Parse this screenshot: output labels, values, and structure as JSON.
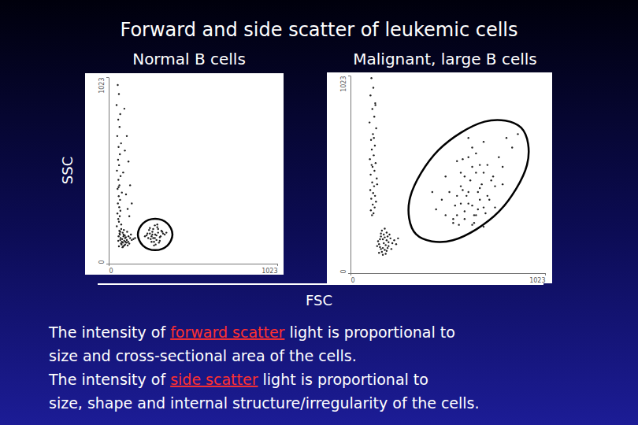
{
  "title": "Forward and side scatter of leukemic cells",
  "x_label": "FSC",
  "caption": [
    [
      {
        "text": "The intensity of "
      },
      {
        "text": "forward scatter",
        "color": "#ff3030"
      },
      {
        "text": " light is proportional to"
      }
    ],
    [
      {
        "text": "size and cross-sectional area of the cells."
      }
    ],
    [
      {
        "text": "The intensity of "
      },
      {
        "text": "side scatter",
        "color": "#ff3030"
      },
      {
        "text": " light is proportional to"
      }
    ],
    [
      {
        "text": "size, shape and internal structure/irregularity of the cells."
      }
    ]
  ],
  "chart_data": [
    {
      "type": "scatter",
      "title": "Normal B cells",
      "y_label": "SSC",
      "xlim": [
        0,
        1023
      ],
      "ylim": [
        0,
        1023
      ],
      "xticks": [
        0,
        1023
      ],
      "yticks": [
        0,
        1023
      ],
      "series": [
        {
          "color": "#222222",
          "x": [
            55,
            62,
            48,
            70,
            58,
            66,
            52,
            75,
            60,
            68,
            57,
            63,
            50,
            72,
            59,
            65,
            54,
            80,
            61,
            69,
            56,
            64,
            71,
            53,
            67,
            58,
            62,
            76,
            49,
            60
          ],
          "values": [
            980,
            930,
            870,
            820,
            790,
            750,
            700,
            660,
            640,
            600,
            570,
            540,
            510,
            480,
            460,
            430,
            410,
            390,
            370,
            350,
            330,
            310,
            290,
            275,
            260,
            245,
            230,
            215,
            205,
            420
          ]
        },
        {
          "color": "#222222",
          "x": [
            95,
            110,
            120,
            88,
            130,
            105,
            140,
            98,
            115,
            125
          ],
          "values": [
            850,
            700,
            560,
            500,
            430,
            380,
            330,
            620,
            300,
            260
          ]
        },
        {
          "color": "#222222",
          "x": [
            60,
            70,
            80,
            90,
            100,
            75,
            85,
            65,
            95,
            110,
            120,
            72,
            88,
            102,
            58,
            68,
            78,
            92,
            108,
            130,
            62,
            82,
            98,
            115,
            140,
            70,
            86,
            104,
            125,
            150,
            66,
            94,
            112,
            76,
            84,
            100,
            118,
            135,
            160,
            90
          ],
          "values": [
            150,
            130,
            120,
            160,
            140,
            110,
            170,
            180,
            100,
            130,
            150,
            140,
            95,
            120,
            125,
            160,
            105,
            185,
            115,
            140,
            95,
            135,
            155,
            100,
            130,
            175,
            115,
            145,
            110,
            135,
            165,
            125,
            175,
            190,
            90,
            105,
            120,
            160,
            140,
            150
          ]
        },
        {
          "color": "#222222",
          "x": [
            282,
            260,
            300,
            240,
            320,
            270,
            290,
            250,
            310,
            230,
            330,
            275,
            295,
            265,
            305,
            245,
            315,
            285,
            255,
            325,
            280,
            235,
            340,
            270,
            300,
            260,
            290,
            310,
            250,
            280,
            220,
            350,
            275,
            295,
            265
          ],
          "values": [
            160,
            150,
            170,
            140,
            180,
            190,
            130,
            165,
            145,
            155,
            165,
            120,
            200,
            175,
            115,
            185,
            150,
            105,
            135,
            175,
            210,
            165,
            160,
            140,
            190,
            120,
            155,
            125,
            195,
            140,
            150,
            170,
            100,
            215,
            160
          ]
        }
      ],
      "gate": {
        "x": [
          387,
          356,
          282,
          208,
          177,
          208,
          282,
          356
        ],
        "y": [
          160,
          221,
          246,
          221,
          160,
          99,
          74,
          99
        ]
      }
    },
    {
      "type": "scatter",
      "title": "Malignant, large B cells",
      "xlim": [
        0,
        1023
      ],
      "ylim": [
        0,
        1023
      ],
      "xticks": [
        0,
        1023
      ],
      "yticks": [
        0,
        1023
      ],
      "series": [
        {
          "color": "#222222",
          "x": [
            110,
            120,
            105,
            130,
            115,
            125,
            100,
            135,
            118,
            108,
            128,
            112,
            122,
            102,
            132,
            116,
            126,
            106,
            138,
            114,
            124,
            104,
            119,
            129,
            109,
            134,
            117,
            127,
            107,
            121,
            113,
            131,
            123,
            111,
            140
          ],
          "values": [
            1010,
            960,
            920,
            880,
            850,
            810,
            780,
            750,
            720,
            690,
            660,
            640,
            610,
            590,
            570,
            550,
            530,
            510,
            490,
            470,
            450,
            430,
            415,
            400,
            385,
            370,
            355,
            340,
            325,
            310,
            300,
            870,
            700,
            560,
            460
          ]
        },
        {
          "color": "#222222",
          "x": [
            150,
            170,
            190,
            160,
            180,
            200,
            140,
            210,
            175,
            165,
            185,
            155,
            195,
            220,
            145,
            205,
            170,
            190,
            160,
            230,
            180,
            150,
            200,
            175,
            165,
            240,
            185,
            195,
            155,
            215,
            170,
            190,
            160,
            180,
            250
          ],
          "values": [
            150,
            130,
            170,
            190,
            120,
            160,
            140,
            180,
            200,
            110,
            145,
            175,
            130,
            155,
            165,
            200,
            95,
            210,
            125,
            170,
            185,
            105,
            140,
            155,
            220,
            150,
            100,
            190,
            135,
            125,
            175,
            115,
            205,
            230,
            180
          ]
        },
        {
          "color": "#222222",
          "x": [
            640,
            600,
            680,
            560,
            720,
            620,
            660,
            580,
            700,
            540,
            760,
            650,
            610,
            690,
            570,
            730,
            630,
            670,
            590,
            710,
            550,
            750,
            640,
            600,
            680,
            620,
            660,
            580,
            700,
            640,
            500,
            800,
            450,
            850,
            520,
            780,
            480,
            820,
            600,
            700,
            660,
            560,
            740,
            620,
            680,
            580,
            640,
            720,
            540,
            760,
            430,
            880,
            500,
            800,
            620,
            700,
            560,
            650,
            590,
            670
          ],
          "values": [
            350,
            320,
            380,
            300,
            400,
            420,
            300,
            360,
            340,
            280,
            450,
            260,
            400,
            460,
            250,
            380,
            480,
            330,
            430,
            310,
            350,
            500,
            550,
            500,
            560,
            600,
            620,
            450,
            520,
            250,
            300,
            550,
            330,
            650,
            420,
            600,
            380,
            700,
            280,
            240,
            520,
            400,
            480,
            360,
            440,
            520,
            650,
            560,
            260,
            340,
            420,
            720,
            500,
            460,
            700,
            680,
            580,
            300,
            590,
            420
          ]
        }
      ],
      "gate": {
        "x": [
          897,
          704,
          462,
          314,
          345,
          538,
          780,
          928
        ],
        "y": [
          753,
          784,
          636,
          394,
          201,
          170,
          318,
          560
        ]
      }
    }
  ]
}
